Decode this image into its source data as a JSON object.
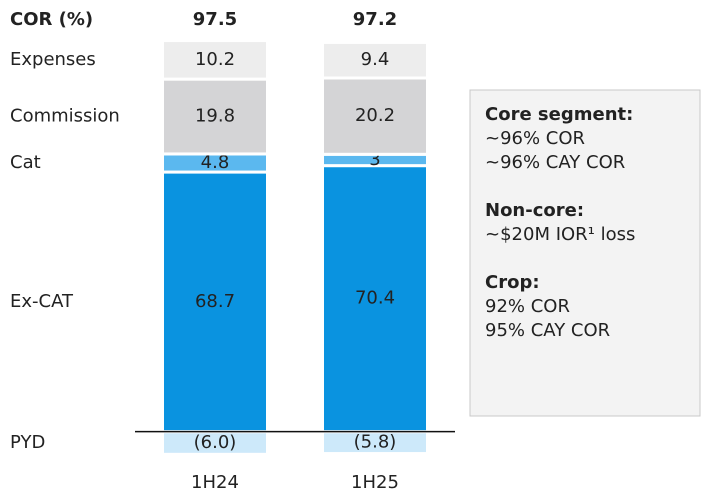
{
  "chart_data": {
    "type": "stacked_bar",
    "title": "COR (%)",
    "categories": [
      "1H24",
      "1H25"
    ],
    "totals": [
      97.5,
      97.2
    ],
    "series": [
      {
        "name": "PYD",
        "color": "#cde9fa",
        "values": [
          -6.0,
          -5.8
        ],
        "value_labels": [
          "(6.0)",
          "(5.8)"
        ]
      },
      {
        "name": "Ex-CAT",
        "color": "#0a93e0",
        "values": [
          68.7,
          70.4
        ]
      },
      {
        "name": "Cat",
        "color": "#5bb8ef",
        "values": [
          4.8,
          3.0
        ]
      },
      {
        "name": "Commission",
        "color": "#d4d4d6",
        "values": [
          19.8,
          20.2
        ]
      },
      {
        "name": "Expenses",
        "color": "#ededed",
        "values": [
          10.2,
          9.4
        ]
      }
    ],
    "ylim": [
      -12,
      110
    ],
    "notes": [
      {
        "heading": "Core segment:",
        "lines": [
          "~96% COR",
          "~96% CAY COR"
        ]
      },
      {
        "heading": "Non-core:",
        "lines": [
          "~$20M IOR¹ loss"
        ]
      },
      {
        "heading": "Crop:",
        "lines": [
          "92% COR",
          "95% CAY COR"
        ]
      }
    ]
  }
}
